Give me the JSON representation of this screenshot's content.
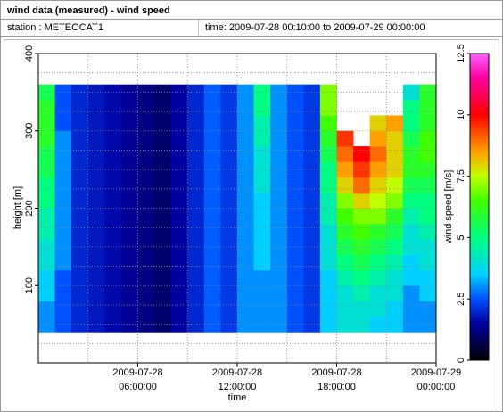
{
  "header": {
    "title": "wind data (measured) - wind speed",
    "station": "station : METEOCAT1",
    "time": "time: 2009-07-28 00:10:00 to 2009-07-29 00:00:00"
  },
  "chart_data": {
    "type": "heatmap",
    "xlabel": "time",
    "ylabel": "height [m]",
    "zlabel": "wind speed [m/s]",
    "x": [
      0.5,
      1.5,
      2.5,
      3.5,
      4.5,
      5.5,
      6.5,
      7.5,
      8.5,
      9.5,
      10.5,
      11.5,
      12.5,
      13.5,
      14.5,
      15.5,
      16.5,
      17.5,
      18.5,
      19.5,
      20.5,
      21.5,
      22.5,
      23.5
    ],
    "y": [
      50,
      70,
      90,
      110,
      130,
      150,
      170,
      190,
      210,
      230,
      250,
      270,
      290,
      310,
      330,
      350
    ],
    "z": [
      [
        3,
        2.5,
        2,
        1.8,
        1.6,
        1.4,
        1.2,
        1.0,
        1.5,
        2,
        2.6,
        2.2,
        3,
        3,
        3,
        2.5,
        2.2,
        3.5,
        4,
        4,
        3.5,
        3.5,
        3,
        3
      ],
      [
        3,
        2.5,
        2,
        1.8,
        1.6,
        1.4,
        1.2,
        1.0,
        1.5,
        2,
        2.6,
        2.2,
        3,
        3,
        3,
        2.5,
        2.2,
        3.5,
        4,
        4,
        4,
        3.5,
        3,
        3
      ],
      [
        3.5,
        2.5,
        2,
        1.8,
        1.6,
        1.4,
        1.2,
        1.0,
        1.5,
        2,
        2.6,
        2.2,
        3,
        3,
        3,
        2.5,
        2.2,
        3.5,
        4,
        4.5,
        4,
        4,
        3,
        3.5
      ],
      [
        3.5,
        2.5,
        2,
        1.8,
        1.6,
        1.4,
        1.2,
        1.0,
        1.5,
        2,
        2.6,
        2.2,
        3,
        3,
        3,
        2.5,
        2.2,
        3.5,
        4.5,
        5,
        4.5,
        4,
        3.5,
        3.5
      ],
      [
        4,
        3,
        2,
        1.8,
        1.6,
        1.4,
        1.2,
        1.0,
        1.5,
        2,
        2.6,
        2.2,
        3,
        3.5,
        3,
        2.5,
        2.2,
        4,
        5,
        5.5,
        5,
        4.5,
        3.5,
        4
      ],
      [
        4,
        3,
        2,
        1.8,
        1.6,
        1.4,
        1.2,
        1.0,
        1.5,
        2,
        2.6,
        2.2,
        3,
        3.5,
        3,
        2.5,
        2.2,
        4,
        5.5,
        6,
        5.5,
        5,
        4,
        4
      ],
      [
        4.5,
        3,
        2,
        1.8,
        1.6,
        1.4,
        1.2,
        1.0,
        1.5,
        2,
        2.6,
        2.2,
        3,
        3.5,
        3,
        2.5,
        2.2,
        4,
        6,
        6.5,
        6,
        5.5,
        4,
        4.5
      ],
      [
        4.5,
        3,
        2,
        1.8,
        1.6,
        1.4,
        1.2,
        1.0,
        1.5,
        2,
        2.6,
        2.2,
        3,
        3.5,
        3,
        2.5,
        2.2,
        4.5,
        6.5,
        7,
        7,
        6,
        4.5,
        5
      ],
      [
        5,
        3,
        2,
        1.8,
        1.6,
        1.4,
        1.2,
        1.0,
        1.5,
        2,
        2.6,
        2.2,
        3,
        3.5,
        3,
        2.5,
        2.2,
        4.5,
        7,
        8,
        7.5,
        7,
        5,
        5
      ],
      [
        5,
        3,
        2,
        1.8,
        1.6,
        1.4,
        1.2,
        1.0,
        1.5,
        2,
        2.6,
        2.2,
        3,
        4,
        3,
        2.5,
        2.2,
        5,
        8,
        9,
        8,
        7.5,
        5.5,
        5.5
      ],
      [
        5.5,
        3,
        2,
        1.8,
        1.6,
        1.4,
        1.2,
        1.0,
        1.5,
        2,
        2.6,
        2.2,
        3,
        4,
        3,
        2.5,
        2.2,
        5,
        8.5,
        9.5,
        8.5,
        8,
        6,
        6
      ],
      [
        5.5,
        3,
        2,
        1.8,
        1.6,
        1.4,
        1.2,
        1.0,
        1.5,
        2,
        2.6,
        2.2,
        3,
        4,
        3,
        2.5,
        2.2,
        5.5,
        9,
        10,
        9,
        8,
        6,
        6.5
      ],
      [
        6,
        3,
        2,
        1.8,
        1.6,
        1.4,
        1.2,
        1.0,
        1.5,
        2,
        2.6,
        2.2,
        3,
        4.5,
        3,
        2.5,
        2.2,
        6,
        9.5,
        null,
        8.5,
        8,
        5.5,
        6.5
      ],
      [
        6,
        2.5,
        2,
        1.8,
        1.6,
        1.4,
        1.2,
        1.0,
        1.5,
        2,
        2.6,
        2.2,
        3,
        4.5,
        3,
        2.5,
        2.2,
        6.5,
        null,
        null,
        8,
        8.5,
        5,
        6
      ],
      [
        6,
        2.5,
        2,
        1.8,
        1.6,
        1.4,
        1.2,
        1.0,
        1.5,
        2,
        2.6,
        2.2,
        3,
        5,
        3,
        2.5,
        2.2,
        7,
        null,
        null,
        null,
        null,
        5,
        6
      ],
      [
        5.5,
        2.5,
        2,
        1.8,
        1.6,
        1.4,
        1.2,
        1.0,
        1.5,
        2,
        2.6,
        2.2,
        3,
        5,
        3,
        2.5,
        2.2,
        7,
        null,
        null,
        null,
        null,
        4,
        6
      ]
    ],
    "xlim": [
      0,
      24
    ],
    "xticks": [
      {
        "value": 6,
        "label": [
          "2009-07-28",
          "06:00:00"
        ]
      },
      {
        "value": 12,
        "label": [
          "2009-07-28",
          "12:00:00"
        ]
      },
      {
        "value": 18,
        "label": [
          "2009-07-28",
          "18:00:00"
        ]
      },
      {
        "value": 24,
        "label": [
          "2009-07-29",
          "00:00:00"
        ]
      }
    ],
    "xminorticks": [
      3,
      6,
      9,
      12,
      15,
      18,
      21
    ],
    "ylim": [
      0,
      400
    ],
    "yticks": [
      100,
      200,
      300,
      400
    ],
    "yminorticks": [
      25,
      50,
      75,
      100,
      125,
      150,
      175,
      200,
      225,
      250,
      275,
      300,
      325,
      350,
      375
    ],
    "zlim": [
      0,
      12.5
    ],
    "zticks": [
      0,
      2.5,
      5,
      7.5,
      10,
      12.5
    ],
    "colorscale": [
      [
        0,
        "#000000"
      ],
      [
        1.5,
        "#0000a0"
      ],
      [
        2.5,
        "#0050ff"
      ],
      [
        3.5,
        "#00d0ff"
      ],
      [
        5,
        "#00ff80"
      ],
      [
        6.5,
        "#40ff00"
      ],
      [
        7.5,
        "#c0ff00"
      ],
      [
        8.5,
        "#ffa000"
      ],
      [
        10,
        "#ff0000"
      ],
      [
        11.5,
        "#ff00a0"
      ],
      [
        12.5,
        "#ff60ff"
      ]
    ],
    "grid": true
  }
}
